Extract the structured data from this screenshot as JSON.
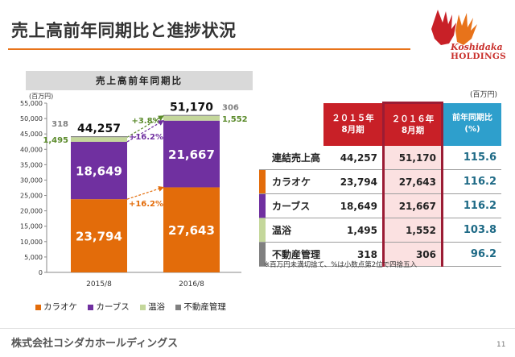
{
  "page_title": "売上高前年同期比と進捗状況",
  "logo": {
    "name": "Koshidaka",
    "sub": "HOLDINGS"
  },
  "chart_header": "売上高前年同期比",
  "colors": {
    "karaoke": "#e36c0a",
    "curves": "#7030a0",
    "onsen": "#c4d79b",
    "real_estate": "#808080",
    "accent_green": "#5a8a2a",
    "header_red": "#c82027",
    "header_blue": "#2e9fcc"
  },
  "chart_data": {
    "type": "bar",
    "stacked": true,
    "title": "売上高前年同期比",
    "ylabel": "(百万円)",
    "ylim": [
      0,
      55000
    ],
    "yticks": [
      "0",
      "5,000",
      "10,000",
      "15,000",
      "20,000",
      "25,000",
      "30,000",
      "35,000",
      "40,000",
      "45,000",
      "50,000",
      "55,000"
    ],
    "yticks_values": [
      0,
      5000,
      10000,
      15000,
      20000,
      25000,
      30000,
      35000,
      40000,
      45000,
      50000,
      55000
    ],
    "categories": [
      "2015/8",
      "2016/8"
    ],
    "series": [
      {
        "name": "カラオケ",
        "values": [
          23794,
          27643
        ],
        "labels": [
          "23,794",
          "27,643"
        ]
      },
      {
        "name": "カーブス",
        "values": [
          18649,
          21667
        ],
        "labels": [
          "18,649",
          "21,667"
        ]
      },
      {
        "name": "温浴",
        "values": [
          1495,
          1552
        ],
        "labels": [
          "1,495",
          "1,552"
        ]
      },
      {
        "name": "不動産管理",
        "values": [
          318,
          306
        ],
        "labels": [
          "318",
          "306"
        ]
      }
    ],
    "totals": [
      "44,257",
      "51,170"
    ],
    "growth_annotations": [
      {
        "text": "+3.8%",
        "series": "温浴"
      },
      {
        "text": "+16.2%",
        "series": "カーブス"
      },
      {
        "text": "+16.2%",
        "series": "カラオケ"
      }
    ],
    "grid": false,
    "legend_position": "bottom"
  },
  "table": {
    "unit": "(百万円)",
    "header_prev": [
      "２０１５年",
      "8月期"
    ],
    "header_cur": [
      "２０１６年",
      "8月期"
    ],
    "header_ratio": [
      "前年同期比",
      "(%)"
    ],
    "rows": [
      {
        "label": "連結売上高",
        "prev": "44,257",
        "cur": "51,170",
        "ratio": "115.6"
      },
      {
        "label": "カラオケ",
        "prev": "23,794",
        "cur": "27,643",
        "ratio": "116.2"
      },
      {
        "label": "カーブス",
        "prev": "18,649",
        "cur": "21,667",
        "ratio": "116.2"
      },
      {
        "label": "温浴",
        "prev": "1,495",
        "cur": "1,552",
        "ratio": "103.8"
      },
      {
        "label": "不動産管理",
        "prev": "318",
        "cur": "306",
        "ratio": "96.2"
      }
    ],
    "note": "※百万円未満切捨て、%は小数点第2位で四捨五入"
  },
  "footer": {
    "company": "株式会社コシダカホールディングス",
    "page_number": "11"
  }
}
